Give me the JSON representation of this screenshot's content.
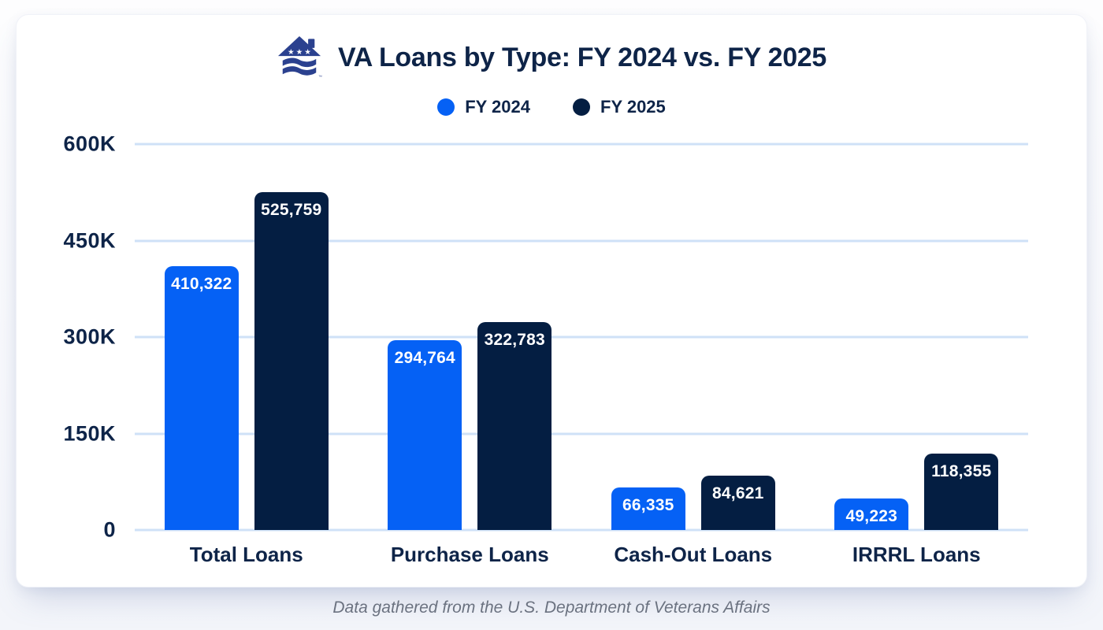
{
  "header": {
    "title": "VA Loans by Type: FY 2024 vs. FY 2025",
    "logo_icon": "veterans-united-house-logo",
    "trademark": "™"
  },
  "colors": {
    "fy2024_blue": "#0561f5",
    "fy2025_navy": "#041e42",
    "text_navy": "#0e2448",
    "gridline_blue": "#cfe1f7",
    "logo_blue": "#2b418f",
    "footer_gray": "#6b7280",
    "card_bg": "#ffffff"
  },
  "legend": [
    {
      "label": "FY 2024",
      "color": "#0561f5"
    },
    {
      "label": "FY 2025",
      "color": "#041e42"
    }
  ],
  "chart_data": {
    "type": "bar",
    "title": "VA Loans by Type: FY 2024 vs. FY 2025",
    "categories": [
      "Total Loans",
      "Purchase Loans",
      "Cash-Out Loans",
      "IRRRL Loans"
    ],
    "series": [
      {
        "name": "FY 2024",
        "color": "#0561f5",
        "values": [
          410322,
          294764,
          66335,
          49223
        ],
        "labels": [
          "410,322",
          "294,764",
          "66,335",
          "49,223"
        ]
      },
      {
        "name": "FY 2025",
        "color": "#041e42",
        "values": [
          525759,
          322783,
          84621,
          118355
        ],
        "labels": [
          "525,759",
          "322,783",
          "84,621",
          "118,355"
        ]
      }
    ],
    "xlabel": "",
    "ylabel": "",
    "ylim": [
      0,
      600000
    ],
    "yticks": [
      "600K",
      "450K",
      "300K",
      "150K",
      "0"
    ],
    "grid": true,
    "legend_position": "top"
  },
  "footer": {
    "caption": "Data gathered from the U.S. Department of Veterans Affairs"
  }
}
